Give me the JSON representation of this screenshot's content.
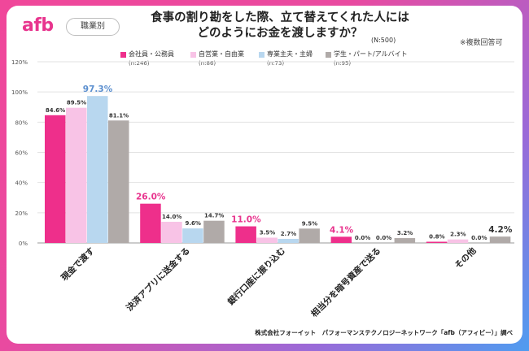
{
  "header": {
    "logo": "afb",
    "badge": "職業別",
    "title_line1": "食事の割り勘をした際、立て替えてくれた人には",
    "title_line2": "どのようにお金を渡しますか？",
    "n_total": "(N:500)",
    "note": "※複数回答可"
  },
  "footer": "株式会社フォーイット　パフォーマンステクノロジーネットワーク「afb（アフィビー）」調べ",
  "colors": {
    "accent": "#e8358e",
    "series": [
      "#ee2f8b",
      "#f8c3e6",
      "#b8d7ef",
      "#b0aaa8"
    ],
    "highlight_text": [
      "#e8358e",
      "#5b8fcf"
    ]
  },
  "chart_data": {
    "type": "bar",
    "categories": [
      "現金で渡す",
      "決済アプリに送金する",
      "銀行口座に振り込む",
      "相当分を暗号資産で送る",
      "その他"
    ],
    "series": [
      {
        "name": "会社員・公務員",
        "n": "(n:246)",
        "values": [
          84.6,
          26.0,
          11.0,
          4.1,
          0.8
        ]
      },
      {
        "name": "自営業・自由業",
        "n": "(n:86)",
        "values": [
          89.5,
          14.0,
          3.5,
          0.0,
          2.3
        ]
      },
      {
        "name": "専業主夫・主婦",
        "n": "(n:73)",
        "values": [
          97.3,
          9.6,
          2.7,
          0.0,
          0.0
        ]
      },
      {
        "name": "学生・パート/アルバイト",
        "n": "(n:95)",
        "values": [
          81.1,
          14.7,
          9.5,
          3.2,
          4.2
        ]
      }
    ],
    "y_ticks": [
      "0%",
      "20%",
      "40%",
      "60%",
      "80%",
      "100%",
      "120%"
    ],
    "ylim": [
      0,
      120
    ],
    "grid": true,
    "legend_position": "top",
    "highlighted_labels": [
      {
        "category": 0,
        "series": 2
      },
      {
        "category": 1,
        "series": 0
      },
      {
        "category": 2,
        "series": 0
      },
      {
        "category": 3,
        "series": 0
      },
      {
        "category": 4,
        "series": 3
      }
    ]
  }
}
